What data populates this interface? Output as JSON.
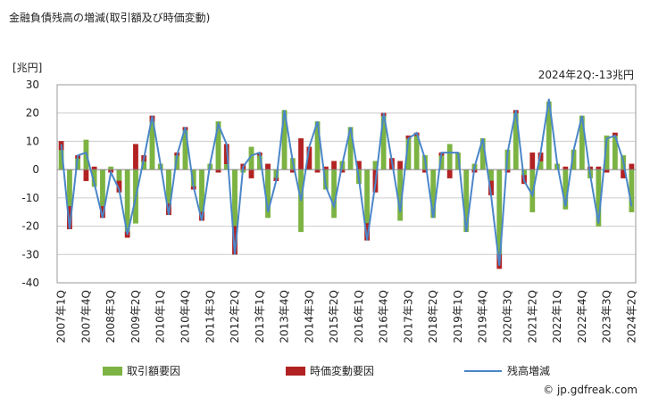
{
  "chart_data": {
    "type": "stacked-bar-line",
    "title": "金融負債残高の増減(取引額及び時価変動)",
    "y_label": "[兆円]",
    "annotation": "2024年2Q:-13兆円",
    "source": "© jp.gdfreak.com",
    "categories": [
      "2007年1Q",
      null,
      null,
      "2007年4Q",
      null,
      null,
      "2008年3Q",
      null,
      null,
      "2009年2Q",
      null,
      null,
      "2010年1Q",
      null,
      null,
      "2010年4Q",
      null,
      null,
      "2011年3Q",
      null,
      null,
      "2012年2Q",
      null,
      null,
      "2013年1Q",
      null,
      null,
      "2013年4Q",
      null,
      null,
      "2014年3Q",
      null,
      null,
      "2015年2Q",
      null,
      null,
      "2016年1Q",
      null,
      null,
      "2016年4Q",
      null,
      null,
      "2017年3Q",
      null,
      null,
      "2018年2Q",
      null,
      null,
      "2019年1Q",
      null,
      null,
      "2019年4Q",
      null,
      null,
      "2020年3Q",
      null,
      null,
      "2021年2Q",
      null,
      null,
      "2022年1Q",
      null,
      null,
      "2022年4Q",
      null,
      null,
      "2023年3Q",
      null,
      null,
      "2024年2Q"
    ],
    "series": [
      {
        "name": "取引額要因",
        "color": "#7cb342",
        "kind": "bar",
        "values": [
          7,
          -13,
          4,
          10.5,
          -6,
          -13,
          1,
          -4,
          -22,
          -19,
          3,
          17,
          2,
          -12,
          5,
          14,
          -6,
          -15,
          2,
          17,
          2,
          -20,
          -1,
          8,
          5,
          -17,
          -3,
          21,
          4,
          -22,
          0,
          17,
          -7,
          -17,
          3,
          15,
          -5,
          -19,
          3,
          19,
          0,
          -18,
          11,
          12,
          5,
          -17,
          5,
          9,
          6,
          -22,
          2,
          11,
          -4,
          -30,
          7,
          20,
          -2,
          -15,
          3,
          24,
          2,
          -14,
          7,
          19,
          -3,
          -20,
          12,
          12,
          5,
          -15
        ]
      },
      {
        "name": "時価変動要因",
        "color": "#b22222",
        "kind": "bar",
        "values": [
          3,
          -8,
          1,
          -4,
          1,
          -4,
          -1,
          -4,
          -2,
          9,
          2,
          2,
          0,
          -4,
          1,
          1,
          -1,
          -3,
          0,
          -1,
          7,
          -10,
          2,
          -3,
          1,
          2,
          -1,
          0,
          -1,
          11,
          8,
          -1,
          1,
          3,
          -1,
          0,
          3,
          -6,
          -8,
          1,
          4,
          3,
          1,
          1,
          -1,
          0,
          1,
          -3,
          0,
          0,
          -1,
          0,
          -5,
          -5,
          -1,
          1,
          -3,
          6,
          3,
          0,
          0,
          1,
          0,
          0,
          1,
          1,
          -1,
          1,
          -3,
          2
        ]
      },
      {
        "name": "残高増減",
        "color": "#4a86c8",
        "kind": "line",
        "values": [
          9,
          -21,
          5,
          6,
          -5,
          -17,
          -1,
          -7,
          -23,
          -10,
          4,
          19,
          2,
          -16,
          5,
          15,
          -6,
          -18,
          2,
          16,
          9,
          -30,
          1,
          5,
          6,
          -15,
          -4,
          21,
          3,
          -11,
          8,
          17,
          -6,
          -13,
          2,
          15,
          -3,
          -25,
          -5,
          20,
          3,
          -15,
          11,
          13,
          4,
          -17,
          6,
          6,
          6,
          -22,
          1,
          11,
          -9,
          -34,
          6,
          21,
          -4,
          -9,
          6,
          25,
          2,
          -13,
          7,
          19,
          -2,
          -19,
          11,
          12,
          3,
          -13
        ]
      }
    ],
    "ylim": [
      -40,
      30
    ],
    "yticks": [
      30,
      20,
      10,
      0,
      -10,
      -20,
      -30,
      -40
    ],
    "grid": true
  }
}
